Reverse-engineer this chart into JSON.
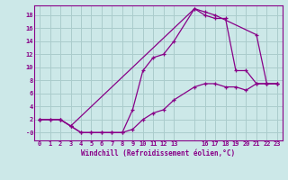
{
  "background_color": "#cce8e8",
  "grid_color": "#aacccc",
  "line_color": "#880088",
  "xlabel": "Windchill (Refroidissement éolien,°C)",
  "xlim": [
    -0.5,
    23.5
  ],
  "ylim": [
    -1.2,
    19.5
  ],
  "xticks": [
    0,
    1,
    2,
    3,
    4,
    5,
    6,
    7,
    8,
    9,
    10,
    11,
    12,
    13,
    15,
    16,
    17,
    18,
    19,
    20,
    21,
    22,
    23
  ],
  "xtick_labels": [
    "0",
    "1",
    "2",
    "3",
    "4",
    "5",
    "6",
    "7",
    "8",
    "9",
    "10",
    "11",
    "12",
    "13",
    "",
    "16",
    "17",
    "18",
    "19",
    "20",
    "21",
    "22",
    "23"
  ],
  "yticks": [
    0,
    2,
    4,
    6,
    8,
    10,
    12,
    14,
    16,
    18
  ],
  "ytick_labels": [
    "-0",
    "2",
    "4",
    "6",
    "8",
    "10",
    "12",
    "14",
    "16",
    "18"
  ],
  "line1_x": [
    0,
    1,
    2,
    3,
    4,
    5,
    6,
    7,
    8,
    9,
    10,
    11,
    12,
    13,
    15,
    16,
    17,
    18,
    19,
    20,
    21,
    22,
    23
  ],
  "line1_y": [
    2,
    2,
    2,
    1,
    0,
    0,
    0,
    0,
    0,
    3.5,
    9.5,
    11.5,
    12,
    14,
    19,
    18,
    17.5,
    17.5,
    9.5,
    9.5,
    7.5,
    7.5,
    7.5
  ],
  "line2_x": [
    0,
    2,
    3,
    15,
    16,
    17,
    21,
    22,
    23
  ],
  "line2_y": [
    2,
    2,
    1,
    19,
    18.5,
    18,
    15,
    7.5,
    7.5
  ],
  "line3_x": [
    0,
    1,
    2,
    3,
    4,
    5,
    6,
    7,
    8,
    9,
    10,
    11,
    12,
    13,
    15,
    16,
    17,
    18,
    19,
    20,
    21,
    22,
    23
  ],
  "line3_y": [
    2,
    2,
    2,
    1,
    0,
    0,
    0,
    0,
    0,
    0.5,
    2,
    3,
    3.5,
    5,
    7,
    7.5,
    7.5,
    7,
    7,
    6.5,
    7.5,
    7.5,
    7.5
  ]
}
